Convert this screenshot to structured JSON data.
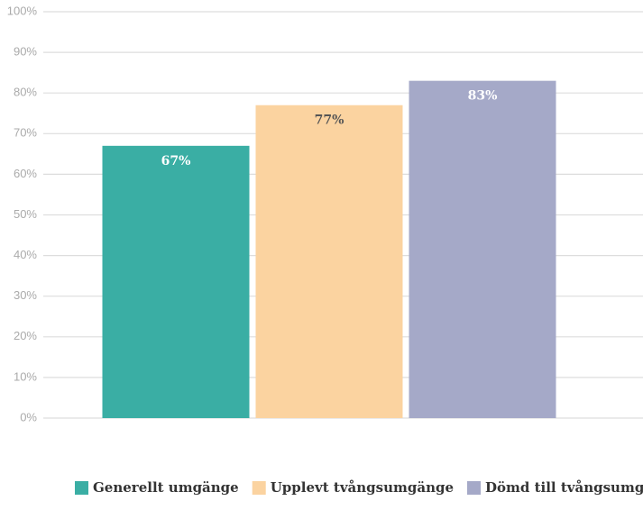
{
  "chart_data": {
    "type": "bar",
    "categories": [
      null
    ],
    "series": [
      {
        "name": "Generellt umgänge",
        "color": "#3aaea4",
        "values": [
          67
        ],
        "value_labels": [
          "67%"
        ]
      },
      {
        "name": "Upplevt tvångsumgänge",
        "color": "#fbd3a0",
        "values": [
          77
        ],
        "value_labels": [
          "77%"
        ]
      },
      {
        "name": "Dömd till tvångsumgänge",
        "color": "#a5a9c8",
        "values": [
          83
        ],
        "value_labels": [
          "83%"
        ]
      }
    ],
    "ylim": [
      0,
      100
    ],
    "yticks": [
      {
        "value": 0,
        "label": "0%"
      },
      {
        "value": 10,
        "label": "10%"
      },
      {
        "value": 20,
        "label": "20%"
      },
      {
        "value": 30,
        "label": "30%"
      },
      {
        "value": 40,
        "label": "40%"
      },
      {
        "value": 50,
        "label": "50%"
      },
      {
        "value": 60,
        "label": "60%"
      },
      {
        "value": 70,
        "label": "70%"
      },
      {
        "value": 80,
        "label": "80%"
      },
      {
        "value": 90,
        "label": "90%"
      },
      {
        "value": 100,
        "label": "100%"
      }
    ],
    "grid": true,
    "legend": "bottom"
  }
}
